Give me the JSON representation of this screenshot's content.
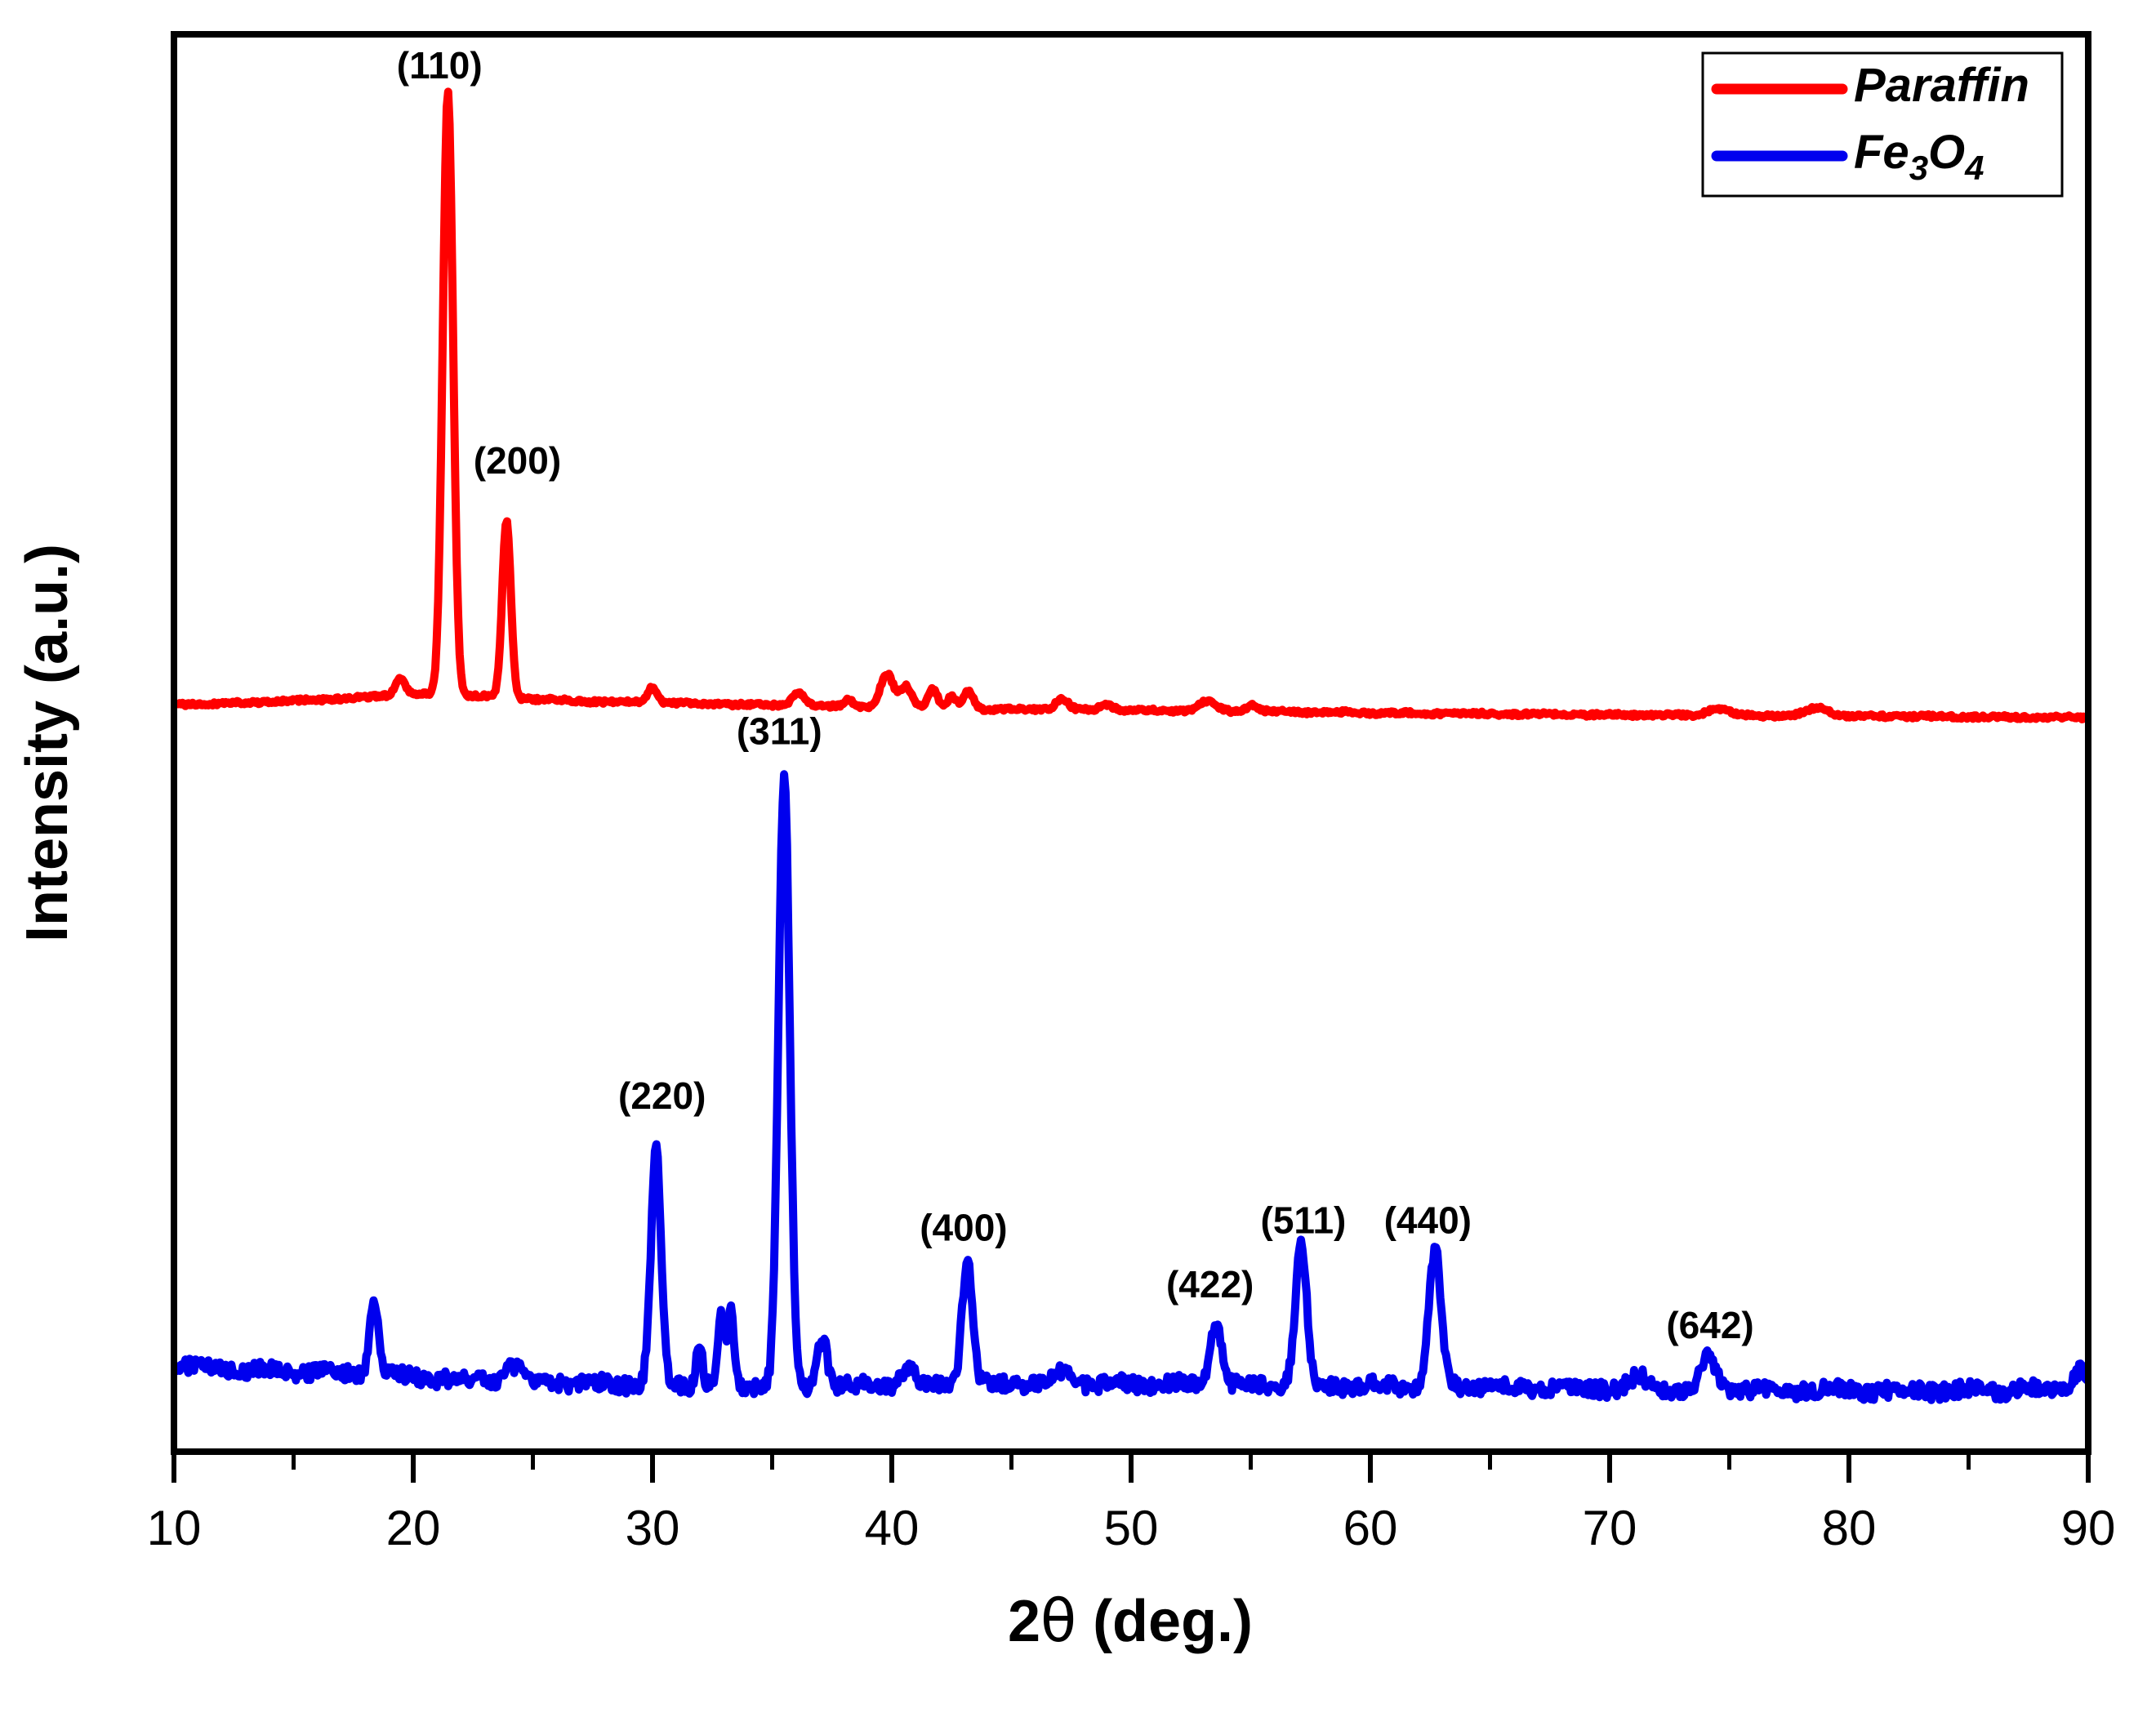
{
  "figure": {
    "background": "#FFFFFF",
    "border_color": "#000000"
  },
  "legend": {
    "entries": [
      {
        "name": "Paraffin",
        "color": "#FF0000",
        "label_segments": [
          {
            "t": "Paraffin",
            "sub": false
          }
        ]
      },
      {
        "name": "Fe3O4",
        "color": "#0000EE",
        "label_segments": [
          {
            "t": "Fe",
            "sub": false
          },
          {
            "t": "3",
            "sub": true
          },
          {
            "t": "O",
            "sub": false
          },
          {
            "t": "4",
            "sub": true
          }
        ]
      }
    ]
  },
  "chart_data": {
    "type": "line",
    "title": "",
    "xlabel": "2θ (deg.)",
    "ylabel": "Intensity (a.u.)",
    "xlim": [
      10,
      90
    ],
    "ylim": [
      0,
      100
    ],
    "grid": false,
    "legend_position": "top-right",
    "x_axis": {
      "title_segments": [
        {
          "t": "2",
          "bold": true
        },
        {
          "t": "θ",
          "bold": false
        },
        {
          "t": " (deg.)",
          "bold": true
        }
      ],
      "major_ticks": [
        {
          "value": 10,
          "label": "10"
        },
        {
          "value": 20,
          "label": "20"
        },
        {
          "value": 30,
          "label": "30"
        },
        {
          "value": 40,
          "label": "40"
        },
        {
          "value": 50,
          "label": "50"
        },
        {
          "value": 60,
          "label": "60"
        },
        {
          "value": 70,
          "label": "70"
        },
        {
          "value": 80,
          "label": "80"
        },
        {
          "value": 90,
          "label": "90"
        }
      ],
      "minor_ticks": [
        15,
        25,
        35,
        45,
        55,
        65,
        75,
        85
      ]
    },
    "y_axis": {
      "ticks_visible": false,
      "label": "Intensity (a.u.)"
    },
    "series": [
      {
        "name": "Paraffin",
        "color": "#FF0000",
        "noise": 0.13,
        "baseline": [
          [
            10,
            52.7
          ],
          [
            14,
            52.9
          ],
          [
            18,
            53.2
          ],
          [
            19.8,
            53.5
          ],
          [
            21,
            53.4
          ],
          [
            23,
            53.3
          ],
          [
            25,
            53.1
          ],
          [
            28,
            52.9
          ],
          [
            31,
            52.8
          ],
          [
            34,
            52.7
          ],
          [
            37,
            52.6
          ],
          [
            40,
            52.5
          ],
          [
            44,
            52.4
          ],
          [
            50,
            52.3
          ],
          [
            56,
            52.2
          ],
          [
            62,
            52.1
          ],
          [
            68,
            52.0
          ],
          [
            74,
            51.95
          ],
          [
            80,
            51.9
          ],
          [
            85,
            51.85
          ],
          [
            90,
            51.8
          ]
        ],
        "peaks": [
          {
            "center": 21.45,
            "height": 42.6,
            "fwhm": 0.5
          },
          {
            "center": 23.9,
            "height": 12.5,
            "fwhm": 0.42
          },
          {
            "center": 19.45,
            "height": 1.1,
            "fwhm": 0.5
          },
          {
            "center": 30.0,
            "height": 1.1,
            "fwhm": 0.5
          },
          {
            "center": 36.1,
            "height": 0.9,
            "fwhm": 0.6
          },
          {
            "center": 38.2,
            "height": 0.5,
            "fwhm": 0.5
          },
          {
            "center": 39.8,
            "height": 2.3,
            "fwhm": 0.65
          },
          {
            "center": 40.6,
            "height": 1.5,
            "fwhm": 0.55
          },
          {
            "center": 41.7,
            "height": 1.3,
            "fwhm": 0.5
          },
          {
            "center": 42.5,
            "height": 0.8,
            "fwhm": 0.4
          },
          {
            "center": 43.2,
            "height": 1.2,
            "fwhm": 0.5
          },
          {
            "center": 47.1,
            "height": 0.8,
            "fwhm": 0.6
          },
          {
            "center": 49.0,
            "height": 0.4,
            "fwhm": 0.6
          },
          {
            "center": 53.2,
            "height": 0.7,
            "fwhm": 0.8
          },
          {
            "center": 55.1,
            "height": 0.45,
            "fwhm": 0.6
          },
          {
            "center": 74.5,
            "height": 0.5,
            "fwhm": 1.0
          },
          {
            "center": 78.7,
            "height": 0.55,
            "fwhm": 1.1
          }
        ]
      },
      {
        "name": "Fe3O4",
        "color": "#0000EE",
        "noise": 0.55,
        "baseline": [
          [
            10,
            6.0
          ],
          [
            13,
            5.8
          ],
          [
            16,
            5.6
          ],
          [
            19,
            5.4
          ],
          [
            22,
            5.1
          ],
          [
            25,
            4.95
          ],
          [
            28,
            4.8
          ],
          [
            31,
            4.7
          ],
          [
            34,
            4.6
          ],
          [
            36,
            4.55
          ],
          [
            38,
            4.6
          ],
          [
            40,
            4.7
          ],
          [
            42,
            4.8
          ],
          [
            45,
            4.85
          ],
          [
            48,
            4.8
          ],
          [
            51,
            4.75
          ],
          [
            54,
            4.7
          ],
          [
            57,
            4.7
          ],
          [
            60,
            4.65
          ],
          [
            63,
            4.6
          ],
          [
            66,
            4.55
          ],
          [
            69,
            4.5
          ],
          [
            72,
            4.45
          ],
          [
            75,
            4.4
          ],
          [
            78,
            4.35
          ],
          [
            81,
            4.3
          ],
          [
            84,
            4.3
          ],
          [
            87,
            4.35
          ],
          [
            89.2,
            4.5
          ],
          [
            90,
            5.0
          ]
        ],
        "peaks": [
          {
            "center": 18.35,
            "height": 5.5,
            "fwhm": 0.42
          },
          {
            "center": 24.2,
            "height": 1.0,
            "fwhm": 0.8
          },
          {
            "center": 30.15,
            "height": 16.6,
            "fwhm": 0.5
          },
          {
            "center": 31.95,
            "height": 3.2,
            "fwhm": 0.32
          },
          {
            "center": 32.85,
            "height": 5.0,
            "fwhm": 0.3
          },
          {
            "center": 33.25,
            "height": 5.6,
            "fwhm": 0.3
          },
          {
            "center": 35.5,
            "height": 43.0,
            "fwhm": 0.55
          },
          {
            "center": 37.1,
            "height": 3.8,
            "fwhm": 0.45
          },
          {
            "center": 40.7,
            "height": 1.2,
            "fwhm": 0.6
          },
          {
            "center": 43.15,
            "height": 8.7,
            "fwhm": 0.5
          },
          {
            "center": 47.3,
            "height": 1.0,
            "fwhm": 0.8
          },
          {
            "center": 53.55,
            "height": 4.6,
            "fwhm": 0.55
          },
          {
            "center": 57.1,
            "height": 10.2,
            "fwhm": 0.55
          },
          {
            "center": 62.7,
            "height": 9.6,
            "fwhm": 0.6
          },
          {
            "center": 71.2,
            "height": 0.8,
            "fwhm": 0.8
          },
          {
            "center": 74.15,
            "height": 2.2,
            "fwhm": 0.7
          },
          {
            "center": 89.6,
            "height": 1.0,
            "fwhm": 0.5
          }
        ]
      }
    ],
    "annotations": [
      {
        "text": "(110)",
        "x": 21.1,
        "y": 97.6
      },
      {
        "text": "(200)",
        "x": 24.35,
        "y": 69.7
      },
      {
        "text": "(311)",
        "x": 35.3,
        "y": 50.6
      },
      {
        "text": "(220)",
        "x": 30.4,
        "y": 24.9
      },
      {
        "text": "(400)",
        "x": 43.0,
        "y": 15.6
      },
      {
        "text": "(422)",
        "x": 53.3,
        "y": 11.6
      },
      {
        "text": "(511)",
        "x": 57.2,
        "y": 16.1
      },
      {
        "text": "(440)",
        "x": 62.4,
        "y": 16.1
      },
      {
        "text": "(642)",
        "x": 74.2,
        "y": 8.7
      }
    ]
  }
}
